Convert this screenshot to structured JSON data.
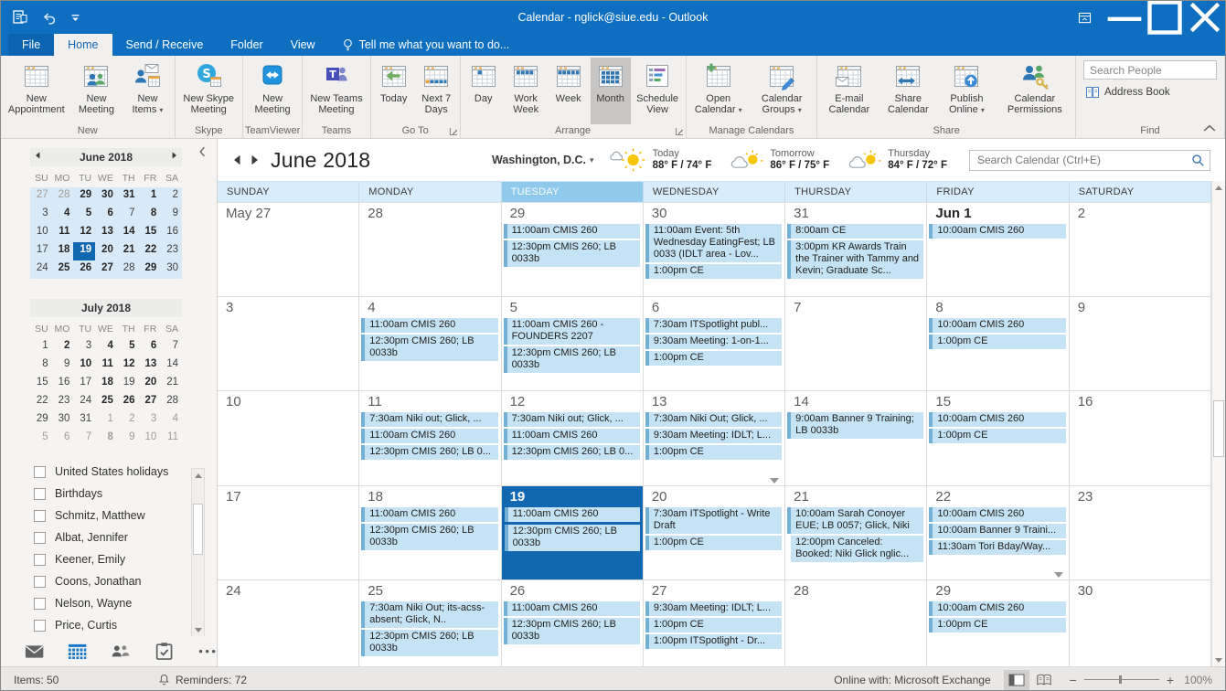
{
  "titlebar": {
    "title": "Calendar - nglick@siue.edu - Outlook"
  },
  "tabs": [
    {
      "label": "File",
      "kind": "file"
    },
    {
      "label": "Home",
      "selected": true
    },
    {
      "label": "Send / Receive"
    },
    {
      "label": "Folder"
    },
    {
      "label": "View"
    }
  ],
  "tell_me": "Tell me what you want to do...",
  "ribbon": {
    "groups": [
      {
        "label": "New",
        "buttons": [
          {
            "label": "New Appointment",
            "icon": "new-appointment-icon"
          },
          {
            "label": "New Meeting",
            "icon": "new-meeting-icon"
          },
          {
            "label": "New Items",
            "icon": "new-items-icon",
            "dropdown": true
          }
        ]
      },
      {
        "label": "Skype Meeting",
        "buttons": [
          {
            "label": "New Skype Meeting",
            "icon": "skype-icon"
          }
        ]
      },
      {
        "label": "TeamViewer",
        "buttons": [
          {
            "label": "New Meeting",
            "icon": "teamviewer-icon"
          }
        ]
      },
      {
        "label": "Teams Meeting",
        "buttons": [
          {
            "label": "New Teams Meeting",
            "icon": "teams-icon"
          }
        ]
      },
      {
        "label": "Go To",
        "dialog": true,
        "buttons": [
          {
            "label": "Today",
            "icon": "today-icon"
          },
          {
            "label": "Next 7 Days",
            "icon": "next7-icon"
          }
        ]
      },
      {
        "label": "Arrange",
        "dialog": true,
        "buttons": [
          {
            "label": "Day",
            "icon": "day-icon"
          },
          {
            "label": "Work Week",
            "icon": "workweek-icon"
          },
          {
            "label": "Week",
            "icon": "week-icon"
          },
          {
            "label": "Month",
            "icon": "month-icon",
            "selected": true
          },
          {
            "label": "Schedule View",
            "icon": "schedule-icon"
          }
        ]
      },
      {
        "label": "Manage Calendars",
        "buttons": [
          {
            "label": "Open Calendar",
            "icon": "open-calendar-icon",
            "dropdown": true
          },
          {
            "label": "Calendar Groups",
            "icon": "calendar-groups-icon",
            "dropdown": true
          }
        ]
      },
      {
        "label": "Share",
        "buttons": [
          {
            "label": "E-mail Calendar",
            "icon": "email-calendar-icon"
          },
          {
            "label": "Share Calendar",
            "icon": "share-calendar-icon"
          },
          {
            "label": "Publish Online",
            "icon": "publish-online-icon",
            "dropdown": true
          },
          {
            "label": "Calendar Permissions",
            "icon": "calendar-permissions-icon"
          }
        ]
      },
      {
        "label": "Find",
        "search_placeholder": "Search People",
        "buttons": [
          {
            "label": "Address Book",
            "icon": "address-book-icon"
          }
        ]
      }
    ]
  },
  "sidebar": {
    "minical_flags_legend": "m=other-month muted, b=bold (has events), s=selected",
    "june": {
      "title": "June 2018",
      "daynames": [
        "SU",
        "MO",
        "TU",
        "WE",
        "TH",
        "FR",
        "SA"
      ],
      "weeks": [
        [
          "27m",
          "28m",
          "29b",
          "30b",
          "31b",
          "1b",
          "2"
        ],
        [
          "3",
          "4b",
          "5b",
          "6b",
          "7",
          "8b",
          "9"
        ],
        [
          "10",
          "11b",
          "12b",
          "13b",
          "14b",
          "15b",
          "16"
        ],
        [
          "17",
          "18b",
          "19s",
          "20b",
          "21b",
          "22b",
          "23"
        ],
        [
          "24",
          "25b",
          "26b",
          "27b",
          "28",
          "29b",
          "30"
        ]
      ]
    },
    "july": {
      "title": "July 2018",
      "daynames": [
        "SU",
        "MO",
        "TU",
        "WE",
        "TH",
        "FR",
        "SA"
      ],
      "weeks": [
        [
          "1",
          "2b",
          "3",
          "4b",
          "5b",
          "6b",
          "7"
        ],
        [
          "8",
          "9",
          "10b",
          "11b",
          "12b",
          "13b",
          "14"
        ],
        [
          "15",
          "16",
          "17",
          "18b",
          "19",
          "20b",
          "21"
        ],
        [
          "22",
          "23",
          "24",
          "25b",
          "26b",
          "27b",
          "28"
        ],
        [
          "29",
          "30",
          "31",
          "1m",
          "2m",
          "3m",
          "4m"
        ],
        [
          "5m",
          "6m",
          "7m",
          "8mb",
          "9m",
          "10m",
          "11m"
        ]
      ]
    },
    "calendar_list": [
      "United States holidays",
      "Birthdays",
      "Schmitz, Matthew",
      "Albat, Jennifer",
      "Keener, Emily",
      "Coons, Jonathan",
      "Nelson, Wayne",
      "Price, Curtis"
    ],
    "modules": [
      {
        "icon": "mail-icon",
        "name": "mail-module"
      },
      {
        "icon": "calendar-module-icon",
        "name": "calendar-module",
        "active": true
      },
      {
        "icon": "people-icon",
        "name": "people-module"
      },
      {
        "icon": "tasks-icon",
        "name": "tasks-module"
      },
      {
        "icon": "ellipsis-icon",
        "name": "more-modules"
      }
    ]
  },
  "calendar": {
    "title": "June 2018",
    "location": "Washington, D.C.",
    "weather": [
      {
        "day": "Today",
        "temp": "88° F / 74° F",
        "icon": "mostly-sunny-icon"
      },
      {
        "day": "Tomorrow",
        "temp": "86° F / 75° F",
        "icon": "partly-cloudy-icon"
      },
      {
        "day": "Thursday",
        "temp": "84° F / 72° F",
        "icon": "partly-cloudy-icon"
      }
    ],
    "search_placeholder": "Search Calendar (Ctrl+E)",
    "day_headers": [
      "SUNDAY",
      "MONDAY",
      "TUESDAY",
      "WEDNESDAY",
      "THURSDAY",
      "FRIDAY",
      "SATURDAY"
    ],
    "today_column": 2,
    "weeks": [
      [
        {
          "n": "May 27",
          "ev": []
        },
        {
          "n": "28",
          "ev": []
        },
        {
          "n": "29",
          "ev": [
            {
              "t": "11:00am CMIS 260"
            },
            {
              "t": "12:30pm CMIS 260; LB 0033b"
            }
          ]
        },
        {
          "n": "30",
          "ev": [
            {
              "t": "11:00am Event: 5th Wednesday EatingFest; LB 0033 (IDLT area - Lov..."
            },
            {
              "t": "1:00pm CE"
            }
          ]
        },
        {
          "n": "31",
          "ev": [
            {
              "t": "8:00am CE"
            },
            {
              "t": "3:00pm KR Awards Train the Trainer with Tammy and Kevin; Graduate Sc..."
            }
          ]
        },
        {
          "n": "Jun 1",
          "bold": true,
          "ev": [
            {
              "t": "10:00am CMIS 260"
            }
          ]
        },
        {
          "n": "2",
          "ev": []
        }
      ],
      [
        {
          "n": "3",
          "ev": []
        },
        {
          "n": "4",
          "ev": [
            {
              "t": "11:00am CMIS 260"
            },
            {
              "t": "12:30pm CMIS 260; LB 0033b"
            }
          ]
        },
        {
          "n": "5",
          "ev": [
            {
              "t": "11:00am CMIS 260 - FOUNDERS 2207"
            },
            {
              "t": "12:30pm CMIS 260; LB 0033b"
            }
          ]
        },
        {
          "n": "6",
          "ev": [
            {
              "t": "7:30am ITSpotlight publ..."
            },
            {
              "t": "9:30am Meeting: 1-on-1..."
            },
            {
              "t": "1:00pm CE"
            }
          ]
        },
        {
          "n": "7",
          "ev": []
        },
        {
          "n": "8",
          "ev": [
            {
              "t": "10:00am CMIS 260"
            },
            {
              "t": "1:00pm CE"
            }
          ]
        },
        {
          "n": "9",
          "ev": []
        }
      ],
      [
        {
          "n": "10",
          "ev": []
        },
        {
          "n": "11",
          "ev": [
            {
              "t": "7:30am Niki out; Glick, ..."
            },
            {
              "t": "11:00am CMIS 260"
            },
            {
              "t": "12:30pm CMIS 260; LB 0..."
            }
          ]
        },
        {
          "n": "12",
          "ev": [
            {
              "t": "7:30am Niki out; Glick, ..."
            },
            {
              "t": "11:00am CMIS 260"
            },
            {
              "t": "12:30pm CMIS 260; LB 0..."
            }
          ]
        },
        {
          "n": "13",
          "more": true,
          "ev": [
            {
              "t": "7:30am Niki Out; Glick, ..."
            },
            {
              "t": "9:30am Meeting: IDLT; L..."
            },
            {
              "t": "1:00pm CE"
            }
          ]
        },
        {
          "n": "14",
          "ev": [
            {
              "t": "9:00am Banner 9 Training; LB 0033b"
            }
          ]
        },
        {
          "n": "15",
          "ev": [
            {
              "t": "10:00am CMIS 260"
            },
            {
              "t": "1:00pm CE"
            }
          ]
        },
        {
          "n": "16",
          "ev": []
        }
      ],
      [
        {
          "n": "17",
          "ev": []
        },
        {
          "n": "18",
          "ev": [
            {
              "t": "11:00am CMIS 260"
            },
            {
              "t": "12:30pm CMIS 260; LB 0033b"
            }
          ]
        },
        {
          "n": "19",
          "selected": true,
          "ev": [
            {
              "t": "11:00am CMIS 260"
            },
            {
              "t": "12:30pm CMIS 260; LB 0033b"
            }
          ]
        },
        {
          "n": "20",
          "ev": [
            {
              "t": "7:30am ITSpotlight - Write Draft"
            },
            {
              "t": "1:00pm CE"
            }
          ]
        },
        {
          "n": "21",
          "ev": [
            {
              "t": "10:00am Sarah Conoyer EUE; LB 0057; Glick, Niki"
            },
            {
              "t": "12:00pm Canceled: Booked: Niki Glick nglic...",
              "k": "c"
            }
          ]
        },
        {
          "n": "22",
          "more": true,
          "ev": [
            {
              "t": "10:00am CMIS 260"
            },
            {
              "t": "10:00am Banner 9 Traini..."
            },
            {
              "t": "11:30am Tori Bday/Way..."
            }
          ]
        },
        {
          "n": "23",
          "ev": []
        }
      ],
      [
        {
          "n": "24",
          "ev": []
        },
        {
          "n": "25",
          "ev": [
            {
              "t": "7:30am Niki Out; its-acss-absent; Glick, N.."
            },
            {
              "t": "12:30pm CMIS 260; LB 0033b"
            }
          ]
        },
        {
          "n": "26",
          "ev": [
            {
              "t": "11:00am CMIS 260"
            },
            {
              "t": "12:30pm CMIS 260; LB 0033b"
            }
          ]
        },
        {
          "n": "27",
          "ev": [
            {
              "t": "9:30am Meeting: IDLT; L..."
            },
            {
              "t": "1:00pm CE"
            },
            {
              "t": "1:00pm ITSpotlight - Dr..."
            }
          ]
        },
        {
          "n": "28",
          "ev": []
        },
        {
          "n": "29",
          "ev": [
            {
              "t": "10:00am CMIS 260"
            },
            {
              "t": "1:00pm CE"
            }
          ]
        },
        {
          "n": "30",
          "ev": []
        }
      ]
    ]
  },
  "statusbar": {
    "items": "Items: 50",
    "reminders": "Reminders: 72",
    "online": "Online with: Microsoft Exchange",
    "zoom": "100%"
  }
}
